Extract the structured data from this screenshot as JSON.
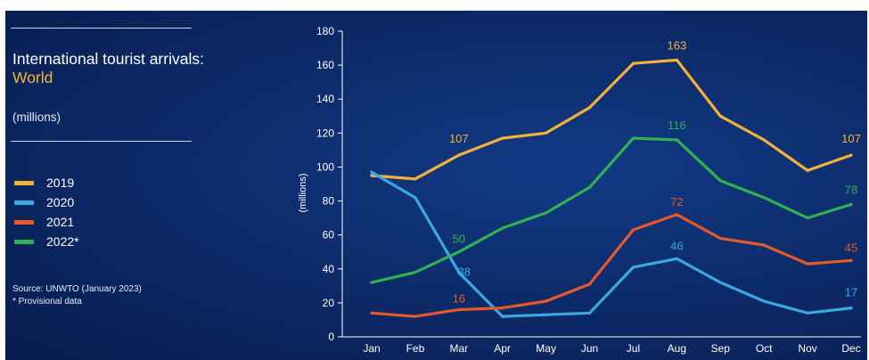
{
  "title_main": "International tourist arrivals:",
  "title_accent": "World",
  "units": "(millions)",
  "source": "Source: UNWTO (January 2023)",
  "footnote": "* Provisional data",
  "colors": {
    "background": "#0b2663",
    "accent": "#f2b23a"
  },
  "chart_data": {
    "type": "line",
    "title": "International tourist arrivals: World",
    "ylabel": "(millions)",
    "xlabel": "",
    "ylim": [
      0,
      180
    ],
    "yticks": [
      0,
      20,
      40,
      60,
      80,
      100,
      120,
      140,
      160,
      180
    ],
    "categories": [
      "Jan",
      "Feb",
      "Mar",
      "Apr",
      "May",
      "Jun",
      "Jul",
      "Aug",
      "Sep",
      "Oct",
      "Nov",
      "Dec"
    ],
    "legend_position": "left",
    "grid": false,
    "series": [
      {
        "name": "2019",
        "color": "#f2b23a",
        "values": [
          95,
          93,
          107,
          117,
          120,
          135,
          161,
          163,
          130,
          116,
          98,
          107
        ]
      },
      {
        "name": "2020",
        "color": "#3aa9e0",
        "values": [
          97,
          82,
          38,
          12,
          13,
          14,
          41,
          46,
          32,
          21,
          14,
          17
        ]
      },
      {
        "name": "2021",
        "color": "#e45a2a",
        "values": [
          14,
          12,
          16,
          17,
          21,
          31,
          63,
          72,
          58,
          54,
          43,
          45
        ]
      },
      {
        "name": "2022*",
        "color": "#2fb24f",
        "values": [
          32,
          38,
          50,
          64,
          73,
          88,
          117,
          116,
          92,
          82,
          70,
          78
        ]
      }
    ],
    "annotations": [
      {
        "series": "2019",
        "month": "Mar",
        "text": "107"
      },
      {
        "series": "2019",
        "month": "Aug",
        "text": "163"
      },
      {
        "series": "2019",
        "month": "Dec",
        "text": "107"
      },
      {
        "series": "2020",
        "month": "Mar",
        "text": "38"
      },
      {
        "series": "2020",
        "month": "Aug",
        "text": "46"
      },
      {
        "series": "2020",
        "month": "Dec",
        "text": "17"
      },
      {
        "series": "2021",
        "month": "Mar",
        "text": "16"
      },
      {
        "series": "2021",
        "month": "Aug",
        "text": "72"
      },
      {
        "series": "2021",
        "month": "Dec",
        "text": "45"
      },
      {
        "series": "2022*",
        "month": "Mar",
        "text": "50"
      },
      {
        "series": "2022*",
        "month": "Aug",
        "text": "116"
      },
      {
        "series": "2022*",
        "month": "Dec",
        "text": "78"
      }
    ]
  }
}
